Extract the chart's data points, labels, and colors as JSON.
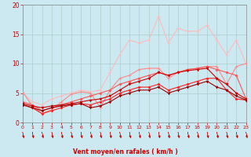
{
  "background_color": "#cce8f0",
  "grid_color": "#aacccc",
  "xlabel": "Vent moyen/en rafales ( km/h )",
  "xlabel_color": "#cc0000",
  "tick_color": "#cc0000",
  "xlim": [
    0,
    23
  ],
  "ylim": [
    0,
    20
  ],
  "xticks": [
    0,
    1,
    2,
    3,
    4,
    5,
    6,
    7,
    8,
    9,
    10,
    11,
    12,
    13,
    14,
    15,
    16,
    17,
    18,
    19,
    20,
    21,
    22,
    23
  ],
  "yticks": [
    0,
    5,
    10,
    15,
    20
  ],
  "series": [
    {
      "x": [
        0,
        1,
        2,
        3,
        4,
        5,
        6,
        7,
        8,
        9,
        10,
        11,
        12,
        13,
        14,
        15,
        16,
        17,
        18,
        19,
        20,
        21,
        22,
        23
      ],
      "y": [
        5.2,
        2.8,
        1.5,
        2.2,
        3.5,
        4.8,
        5.2,
        5.0,
        2.5,
        5.5,
        7.5,
        8.0,
        9.0,
        9.2,
        9.2,
        7.5,
        8.5,
        9.0,
        9.2,
        9.5,
        9.5,
        6.5,
        9.5,
        10.0
      ],
      "color": "#ff8888",
      "marker": "+",
      "linewidth": 0.8,
      "markersize": 3,
      "zorder": 3
    },
    {
      "x": [
        0,
        1,
        2,
        3,
        4,
        5,
        6,
        7,
        8,
        9,
        10,
        11,
        12,
        13,
        14,
        15,
        16,
        17,
        18,
        19,
        20,
        21,
        22,
        23
      ],
      "y": [
        5.0,
        3.5,
        3.0,
        4.0,
        4.5,
        5.0,
        5.5,
        5.2,
        5.5,
        8.5,
        11.5,
        14.0,
        13.5,
        14.0,
        18.0,
        13.5,
        16.0,
        15.5,
        15.5,
        16.5,
        14.0,
        11.5,
        14.0,
        10.0
      ],
      "color": "#ffbbbb",
      "marker": "+",
      "linewidth": 0.8,
      "markersize": 3,
      "zorder": 2
    },
    {
      "x": [
        0,
        1,
        2,
        3,
        4,
        5,
        6,
        7,
        8,
        9,
        10,
        11,
        12,
        13,
        14,
        15,
        16,
        17,
        18,
        19,
        20,
        21,
        22,
        23
      ],
      "y": [
        3.2,
        2.8,
        2.5,
        2.8,
        3.0,
        3.2,
        3.5,
        3.8,
        4.0,
        4.5,
        5.5,
        6.5,
        7.0,
        7.5,
        8.5,
        8.0,
        8.5,
        8.8,
        9.0,
        9.2,
        7.5,
        6.5,
        5.0,
        4.0
      ],
      "color": "#cc0000",
      "marker": "v",
      "linewidth": 0.8,
      "markersize": 2,
      "zorder": 4
    },
    {
      "x": [
        0,
        1,
        2,
        3,
        4,
        5,
        6,
        7,
        8,
        9,
        10,
        11,
        12,
        13,
        14,
        15,
        16,
        17,
        18,
        19,
        20,
        21,
        22,
        23
      ],
      "y": [
        3.0,
        2.5,
        2.0,
        2.5,
        2.8,
        3.0,
        3.2,
        2.5,
        2.8,
        3.5,
        4.5,
        5.0,
        5.5,
        5.5,
        6.0,
        5.0,
        5.5,
        6.0,
        6.5,
        7.0,
        6.0,
        5.5,
        4.5,
        3.8
      ],
      "color": "#990000",
      "marker": "v",
      "linewidth": 0.8,
      "markersize": 2,
      "zorder": 4
    },
    {
      "x": [
        0,
        1,
        2,
        3,
        4,
        5,
        6,
        7,
        8,
        9,
        10,
        11,
        12,
        13,
        14,
        15,
        16,
        17,
        18,
        19,
        20,
        21,
        22,
        23
      ],
      "y": [
        3.0,
        2.5,
        1.5,
        2.0,
        2.5,
        3.0,
        3.2,
        3.0,
        3.5,
        4.0,
        5.0,
        5.5,
        6.0,
        6.0,
        6.5,
        5.5,
        6.0,
        6.5,
        7.0,
        7.5,
        7.5,
        5.5,
        4.0,
        3.8
      ],
      "color": "#ff2222",
      "marker": "D",
      "linewidth": 0.8,
      "markersize": 1.5,
      "zorder": 3
    },
    {
      "x": [
        0,
        1,
        2,
        3,
        4,
        5,
        6,
        7,
        8,
        9,
        10,
        11,
        12,
        13,
        14,
        15,
        16,
        17,
        18,
        19,
        20,
        21,
        22,
        23
      ],
      "y": [
        3.5,
        3.0,
        2.0,
        2.5,
        3.0,
        3.5,
        4.0,
        4.5,
        5.0,
        5.5,
        6.5,
        7.0,
        7.5,
        8.0,
        8.5,
        8.0,
        8.5,
        9.0,
        9.2,
        9.5,
        9.0,
        8.5,
        8.0,
        4.0
      ],
      "color": "#ff5555",
      "marker": "D",
      "linewidth": 0.8,
      "markersize": 1.5,
      "zorder": 3
    }
  ]
}
